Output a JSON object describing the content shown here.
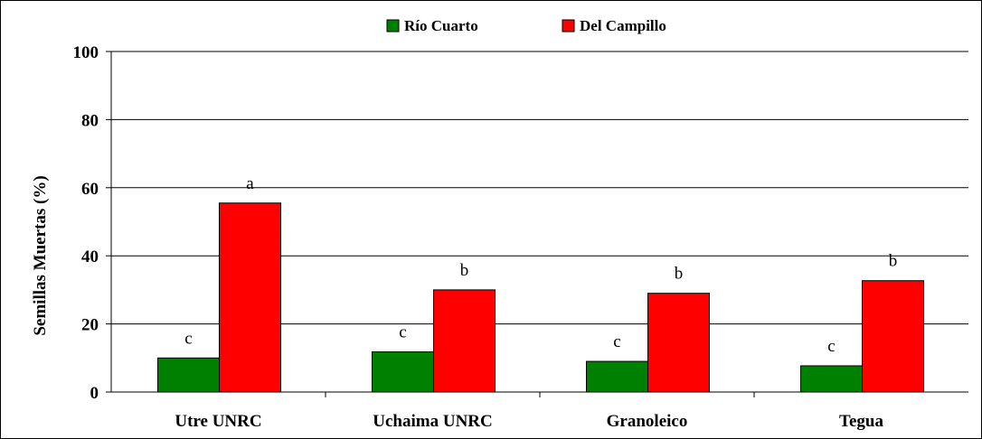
{
  "chart_data": {
    "type": "bar",
    "categories": [
      "Utre UNRC",
      "Uchaima UNRC",
      "Granoleico",
      "Tegua"
    ],
    "series": [
      {
        "name": "Río Cuarto",
        "color": "#008000",
        "values": [
          10,
          11.8,
          9,
          7.7
        ],
        "labels": [
          "c",
          "c",
          "c",
          "c"
        ]
      },
      {
        "name": "Del Campillo",
        "color": "#ff0000",
        "values": [
          55.5,
          30,
          29,
          32.7
        ],
        "labels": [
          "a",
          "b",
          "b",
          "b"
        ]
      }
    ],
    "xlabel": "",
    "ylabel": "Semillas Muertas (%)",
    "ylim": [
      0,
      100
    ],
    "yticks": [
      0,
      20,
      40,
      60,
      80,
      100
    ],
    "grid": true,
    "legend_position": "top-center"
  }
}
